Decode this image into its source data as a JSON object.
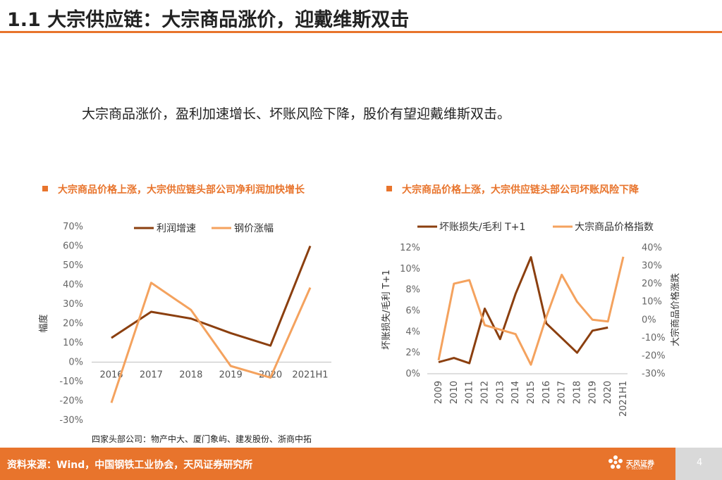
{
  "header": {
    "title": "1.1 大宗供应链：大宗商品涨价，迎戴维斯双击",
    "accent_color": "#e8742c"
  },
  "subtitle": "大宗商品涨价，盈利加速增长、坏账风险下降，股价有望迎戴维斯双击。",
  "note": "四家头部公司：物产中大、厦门象屿、建发股份、浙商中拓",
  "footer": {
    "source": "资料来源：Wind，中国钢铁工业协会，天风证券研究所",
    "logo_text": "天风证券",
    "logo_sub": "TF SECURITIES",
    "page_number": "4"
  },
  "chart_data": [
    {
      "type": "line",
      "title": "大宗商品价格上涨，大宗供应链头部公司净利润加快增长",
      "categories": [
        "2016",
        "2017",
        "2018",
        "2019",
        "2020",
        "2021H1"
      ],
      "ylabel": "幅度",
      "ylim": [
        -30,
        70
      ],
      "y_ticks": [
        "70%",
        "60%",
        "50%",
        "40%",
        "30%",
        "20%",
        "10%",
        "0%",
        "-10%",
        "-20%",
        "-30%"
      ],
      "legend_position": "top",
      "series": [
        {
          "name": "利润增速",
          "color": "#8b3f0f",
          "values": [
            12.5,
            26,
            22.5,
            15,
            8.5,
            60
          ]
        },
        {
          "name": "钢价涨幅",
          "color": "#f4a25e",
          "values": [
            -21,
            41,
            27,
            -2,
            -8,
            38.5
          ]
        }
      ]
    },
    {
      "type": "line",
      "title": "大宗商品价格上涨，大宗供应链头部公司坏账风险下降",
      "categories": [
        "2009",
        "2010",
        "2011",
        "2012",
        "2013",
        "2014",
        "2015",
        "2016",
        "2017",
        "2018",
        "2019",
        "2020",
        "2021H1"
      ],
      "ylabel_left": "坏账损失/毛利 T+1",
      "ylabel_right": "大宗商品价格涨跌",
      "ylim_left": [
        0,
        12
      ],
      "ylim_right": [
        -30,
        40
      ],
      "y_ticks_left": [
        "12%",
        "10%",
        "8%",
        "6%",
        "4%",
        "2%",
        "0%"
      ],
      "y_ticks_right": [
        "40%",
        "30%",
        "20%",
        "10%",
        "0%",
        "-10%",
        "-20%",
        "-30%"
      ],
      "legend_position": "top",
      "series": [
        {
          "name": "坏账损失/毛利 T+1",
          "axis": "left",
          "color": "#8b3f0f",
          "values": [
            1.1,
            1.5,
            1.0,
            6.2,
            3.3,
            7.6,
            11.1,
            4.8,
            3.4,
            2.0,
            4.1,
            4.4,
            null
          ]
        },
        {
          "name": "大宗商品价格指数",
          "axis": "right",
          "color": "#f4a25e",
          "values": [
            -22.5,
            20,
            22,
            -3,
            -5.5,
            -8,
            -25,
            1.5,
            25,
            10,
            0,
            -1,
            35
          ]
        }
      ]
    }
  ]
}
